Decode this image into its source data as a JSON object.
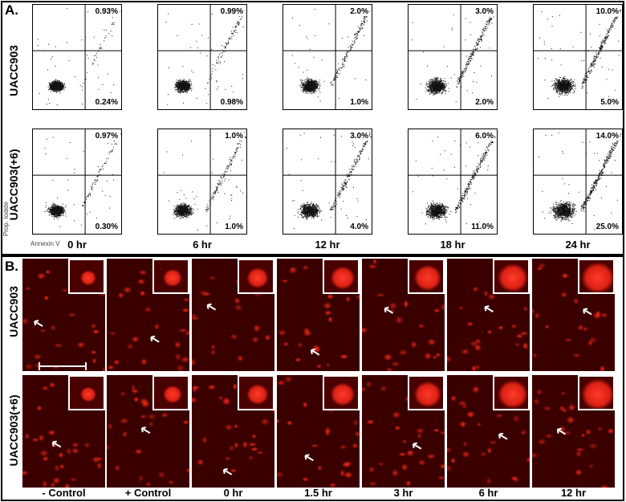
{
  "panel_a": {
    "letter": "A.",
    "rows": [
      "UACC903",
      "UACC903(+6)"
    ],
    "timepoints": [
      "0 hr",
      "6 hr",
      "12 hr",
      "18 hr",
      "24 hr"
    ],
    "y_axis_caption": "Prop. Iodide",
    "x_axis_caption": "Annexin V",
    "upper_right_pct": [
      [
        "0.93%",
        "0.99%",
        "2.0%",
        "3.0%",
        "10.0%"
      ],
      [
        "0.97%",
        "1.0%",
        "3.0%",
        "6.0%",
        "14.0%"
      ]
    ],
    "lower_right_pct": [
      [
        "0.24%",
        "0.98%",
        "1.0%",
        "2.0%",
        "5.0%"
      ],
      [
        "0.30%",
        "1.0%",
        "4.0%",
        "11.0%",
        "25.0%"
      ]
    ]
  },
  "panel_b": {
    "letter": "B.",
    "rows": [
      "UACC903",
      "UACC903(+6)"
    ],
    "columns": [
      "- Control",
      "+ Control",
      "0 hr",
      "1.5 hr",
      "3 hr",
      "6 hr",
      "12 hr"
    ]
  },
  "colors": {
    "fluorescence": "#ff2a1a",
    "background_dark": "#3a0000",
    "dot": "#111111"
  }
}
